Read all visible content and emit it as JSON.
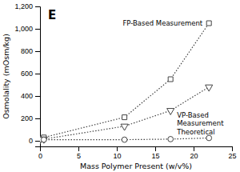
{
  "chart_data": {
    "type": "line",
    "title": "E",
    "x_label": "Mass Polymer Present (w/v%)",
    "y_label": "Osmolality (mOsm/kg)",
    "xlim": [
      0,
      25
    ],
    "ylim": [
      -50,
      1200
    ],
    "xticks": [
      0,
      5,
      10,
      15,
      20,
      25
    ],
    "yticks": [
      0,
      200,
      400,
      600,
      800,
      {
        "value": 1000,
        "label": "1,000"
      },
      {
        "value": 1200,
        "label": "1,200"
      }
    ],
    "grid": false,
    "x": [
      0,
      0.5,
      11,
      17,
      22
    ],
    "series": [
      {
        "name": "FP-Based Measurement",
        "color": "#444444",
        "marker": "square",
        "line_style": "dotted",
        "values": [
          20,
          30,
          210,
          550,
          1050
        ]
      },
      {
        "name": "VP-Based\nMeasurement",
        "color": "#444444",
        "marker": "triangle-down",
        "line_style": "dotted",
        "values": [
          10,
          15,
          130,
          270,
          480
        ]
      },
      {
        "name": "Theoretical",
        "color": "#444444",
        "marker": "circle",
        "line_style": "dotted",
        "values": [
          10,
          10,
          10,
          15,
          25
        ]
      }
    ]
  }
}
